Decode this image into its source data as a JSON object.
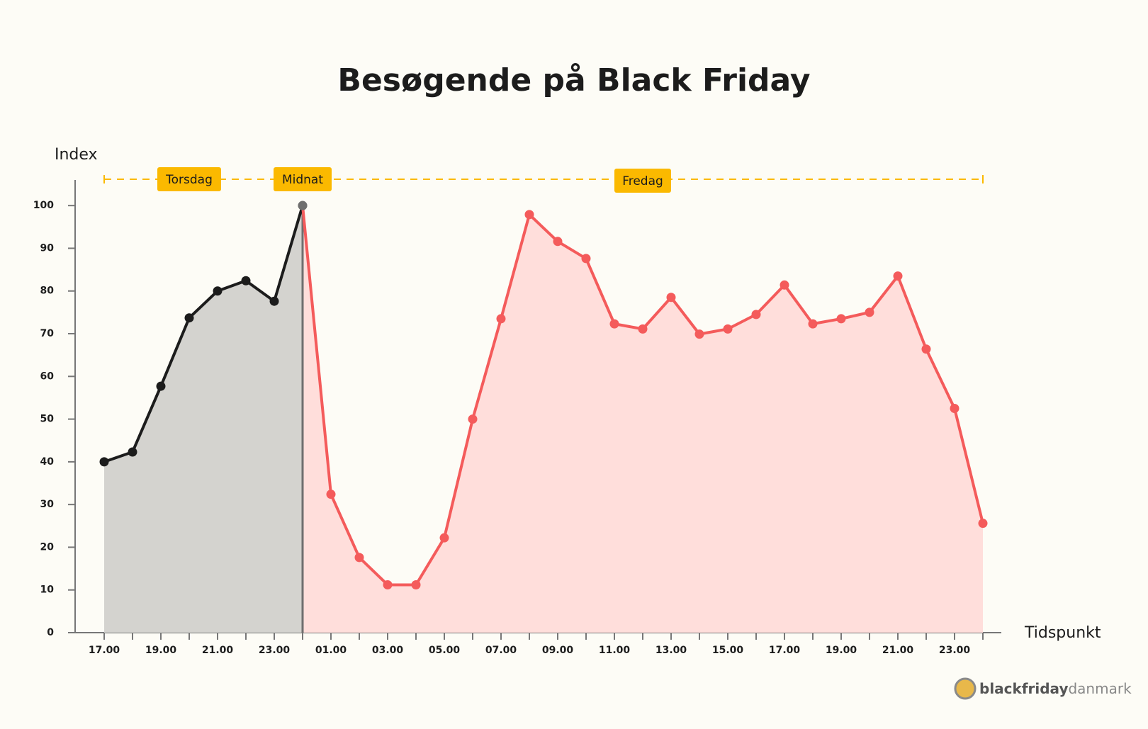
{
  "chart_data": {
    "type": "line",
    "title": "Besøgende på Black Friday",
    "ylabel": "Index",
    "xlabel": "Tidspunkt",
    "categories": [
      "17.00",
      null,
      "19.00",
      null,
      "21.00",
      null,
      "23.00",
      null,
      "01.00",
      null,
      "03.00",
      null,
      "05.00",
      null,
      "07.00",
      null,
      "09.00",
      null,
      "11.00",
      null,
      "13.00",
      null,
      "15.00",
      null,
      "17.00",
      null,
      "19.00",
      null,
      "21.00",
      null,
      "23.00",
      null
    ],
    "series": [
      {
        "name": "Torsdag",
        "color": "#1c1c1c",
        "fill": "#d4d3cf",
        "values": [
          40,
          42.3,
          57.7,
          73.7,
          80,
          82.4,
          77.6,
          100,
          null,
          null,
          null,
          null,
          null,
          null,
          null,
          null,
          null,
          null,
          null,
          null,
          null,
          null,
          null,
          null,
          null,
          null,
          null,
          null,
          null,
          null,
          null,
          null
        ]
      },
      {
        "name": "Fredag",
        "color": "#f45b5b",
        "fill": "#ffdedb",
        "values": [
          null,
          null,
          null,
          null,
          null,
          null,
          null,
          100,
          32.4,
          17.6,
          11.2,
          11.2,
          22.2,
          50,
          73.5,
          97.9,
          91.6,
          87.6,
          72.3,
          71.1,
          78.5,
          69.9,
          71.1,
          74.5,
          81.4,
          72.3,
          73.5,
          75,
          83.5,
          66.4,
          52.5,
          25.6
        ]
      }
    ],
    "midnight": {
      "label": "Midnat",
      "index": 7,
      "color": "#6f6f6f"
    },
    "annotation_color": "#fbb900",
    "ylim": [
      0,
      106
    ],
    "yticks": [
      0,
      10,
      20,
      30,
      40,
      50,
      60,
      70,
      80,
      90,
      100
    ],
    "logo": {
      "bold": "blackfriday",
      "light": "danmark"
    }
  }
}
